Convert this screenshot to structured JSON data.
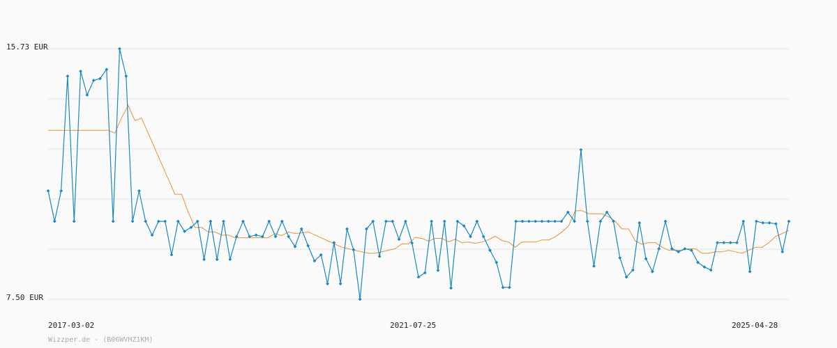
{
  "chart_data": {
    "type": "line",
    "y_unit": "EUR",
    "ylim": [
      7.5,
      15.73
    ],
    "y_tick_labels": [
      "15.73 EUR",
      "7.50 EUR"
    ],
    "x_tick_labels": [
      "2017-03-02",
      "2021-07-25",
      "2025-04-28"
    ],
    "grid": true,
    "credit": "Wizzper.de - (B06WVHZ1KM)",
    "colors": {
      "price": "#1a87c2",
      "average": "#e69135",
      "grid": "#e4e4e4"
    },
    "series": [
      {
        "key": "price",
        "values": [
          11.06,
          10.06,
          11.06,
          14.83,
          10.06,
          14.99,
          14.21,
          14.69,
          14.75,
          15.05,
          10.06,
          15.73,
          14.83,
          10.06,
          11.06,
          10.06,
          9.61,
          10.06,
          10.06,
          8.96,
          10.06,
          9.73,
          9.86,
          10.06,
          8.81,
          10.06,
          8.81,
          10.06,
          8.81,
          9.56,
          10.06,
          9.56,
          9.61,
          9.56,
          10.06,
          9.56,
          10.06,
          9.56,
          9.23,
          9.81,
          9.26,
          8.76,
          8.96,
          8.01,
          9.36,
          8.01,
          9.81,
          9.13,
          7.5,
          9.81,
          10.06,
          8.91,
          10.06,
          10.06,
          9.47,
          10.06,
          9.35,
          8.23,
          8.37,
          10.06,
          8.45,
          10.06,
          7.87,
          10.06,
          9.91,
          9.56,
          10.06,
          9.56,
          9.11,
          8.71,
          7.89,
          7.89,
          10.06,
          10.06,
          10.06,
          10.06,
          10.06,
          10.06,
          10.06,
          10.06,
          10.36,
          10.06,
          12.41,
          10.06,
          8.59,
          10.06,
          10.36,
          10.06,
          8.86,
          8.23,
          8.46,
          10.01,
          8.83,
          8.41,
          9.16,
          10.06,
          9.16,
          9.06,
          9.16,
          9.11,
          8.71,
          8.56,
          8.46,
          9.36,
          9.36,
          9.36,
          9.36,
          10.06,
          8.41,
          10.06,
          10.01,
          10.01,
          9.98,
          9.06,
          10.06
        ]
      },
      {
        "key": "average",
        "values": [
          13.05,
          13.05,
          13.05,
          13.05,
          13.05,
          13.05,
          13.05,
          13.05,
          13.05,
          13.05,
          12.96,
          13.46,
          13.87,
          13.37,
          13.45,
          12.95,
          12.45,
          11.95,
          11.45,
          10.95,
          10.95,
          10.36,
          9.86,
          9.86,
          9.71,
          9.71,
          9.61,
          9.61,
          9.52,
          9.52,
          9.52,
          9.52,
          9.52,
          9.52,
          9.66,
          9.59,
          9.71,
          9.66,
          9.68,
          9.71,
          9.61,
          9.51,
          9.41,
          9.31,
          9.21,
          9.16,
          9.11,
          9.06,
          9.01,
          9.01,
          9.06,
          9.11,
          9.16,
          9.32,
          9.32,
          9.53,
          9.5,
          9.41,
          9.5,
          9.5,
          9.39,
          9.47,
          9.36,
          9.38,
          9.34,
          9.38,
          9.46,
          9.57,
          9.43,
          9.38,
          9.21,
          9.38,
          9.38,
          9.38,
          9.45,
          9.45,
          9.55,
          9.71,
          9.91,
          10.41,
          10.41,
          10.31,
          10.31,
          10.31,
          10.21,
          10.06,
          9.81,
          9.81,
          9.41,
          9.31,
          9.36,
          9.36,
          9.21,
          9.11,
          9.11,
          9.11,
          9.16,
          9.16,
          9.01,
          9.01,
          9.06,
          9.06,
          9.11,
          9.06,
          9.01,
          9.11,
          9.21,
          9.21,
          9.36,
          9.56,
          9.66,
          9.76
        ]
      }
    ]
  }
}
